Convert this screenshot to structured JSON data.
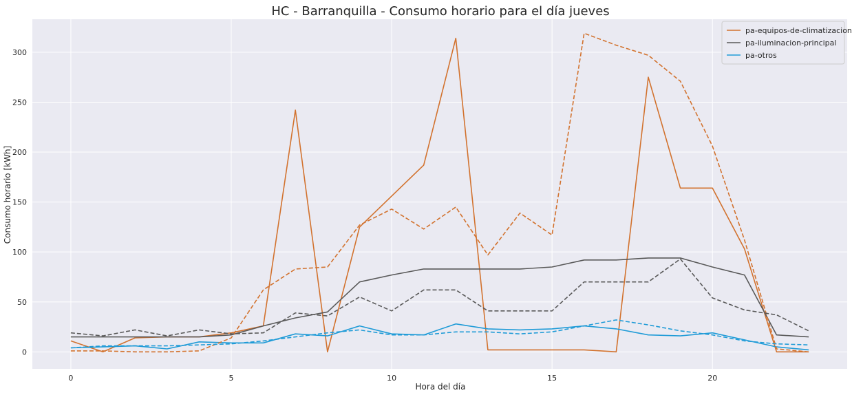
{
  "chart_data": {
    "type": "line",
    "title": "HC - Barranquilla - Consumo horario para el día jueves",
    "xlabel": "Hora del día",
    "ylabel": "Consumo horario [kWh]",
    "xlim": [
      -1.2,
      24.2
    ],
    "ylim": [
      -17,
      333
    ],
    "xticks": [
      0,
      5,
      10,
      15,
      20
    ],
    "yticks": [
      0,
      50,
      100,
      150,
      200,
      250,
      300
    ],
    "grid": true,
    "legend_position": "top-right",
    "x": [
      0,
      1,
      2,
      3,
      4,
      5,
      6,
      7,
      8,
      9,
      10,
      11,
      12,
      13,
      14,
      15,
      16,
      17,
      18,
      19,
      20,
      21,
      22,
      23
    ],
    "series": [
      {
        "name": "pa-equipos-de-climatizacion",
        "style": "solid",
        "color": "#d2722e",
        "values": [
          11,
          0,
          14,
          15,
          15,
          19,
          26,
          242,
          0,
          125,
          156,
          187,
          314,
          2,
          2,
          2,
          2,
          0,
          275,
          164,
          164,
          103,
          0,
          0
        ]
      },
      {
        "name": "pa-iluminacion-principal",
        "style": "solid",
        "color": "#595959",
        "values": [
          15,
          15,
          15,
          15,
          15,
          17,
          26,
          34,
          40,
          70,
          77,
          83,
          83,
          83,
          83,
          85,
          92,
          92,
          94,
          94,
          85,
          77,
          17,
          15
        ]
      },
      {
        "name": "pa-otros",
        "style": "solid",
        "color": "#1f9bd7",
        "values": [
          4,
          5,
          6,
          3,
          10,
          9,
          9,
          18,
          16,
          26,
          18,
          17,
          28,
          23,
          22,
          23,
          26,
          23,
          17,
          16,
          19,
          12,
          5,
          2
        ]
      },
      {
        "name": "",
        "style": "dashed",
        "color": "#d2722e",
        "values": [
          1,
          1,
          0,
          0,
          1,
          14,
          62,
          83,
          85,
          127,
          143,
          123,
          145,
          97,
          139,
          117,
          319,
          307,
          297,
          271,
          206,
          112,
          3,
          0
        ]
      },
      {
        "name": "",
        "style": "dashed",
        "color": "#595959",
        "values": [
          19,
          16,
          22,
          16,
          22,
          18,
          19,
          39,
          36,
          55,
          41,
          62,
          62,
          41,
          41,
          41,
          70,
          70,
          70,
          93,
          54,
          42,
          37,
          21
        ]
      },
      {
        "name": "",
        "style": "dashed",
        "color": "#1f9bd7",
        "values": [
          4,
          6,
          6,
          6,
          7,
          8,
          11,
          15,
          19,
          22,
          17,
          17,
          20,
          20,
          18,
          20,
          26,
          32,
          27,
          21,
          17,
          11,
          8,
          7
        ]
      }
    ]
  },
  "colors": {
    "plot_background": "#eaeaf2",
    "grid": "#ffffff",
    "legend_background": "#eaeaf2",
    "legend_border": "#cccccc"
  }
}
